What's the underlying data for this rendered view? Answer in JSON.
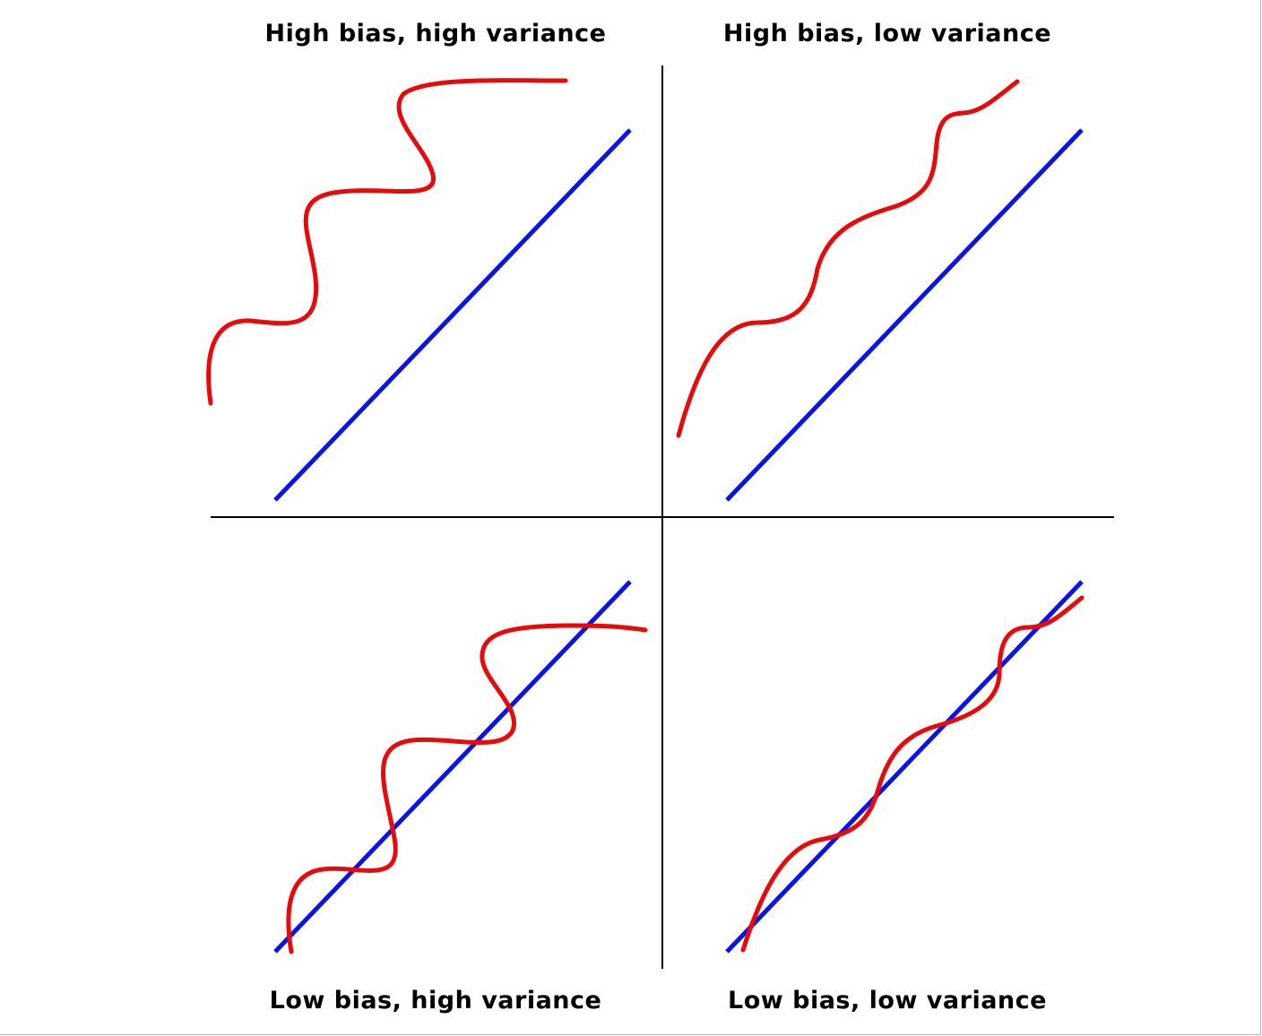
{
  "quadrants": {
    "top_left": {
      "label": "High bias, high variance"
    },
    "top_right": {
      "label": "High bias, low variance"
    },
    "bottom_left": {
      "label": "Low bias, high variance"
    },
    "bottom_right": {
      "label": "Low bias, low variance"
    }
  },
  "colors": {
    "reference_line": "#0a14e6",
    "fitted_curve": "#e60a0a",
    "divider": "#000000"
  }
}
